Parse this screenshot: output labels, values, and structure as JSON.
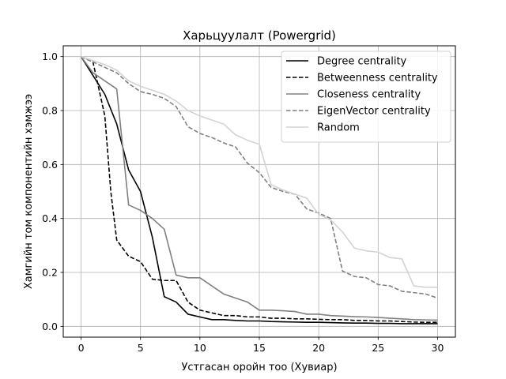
{
  "chart_data": {
    "type": "line",
    "title": "Харьцуулалт (Powergrid)",
    "xlabel": "Устгасан оройн тоо (Хувиар)",
    "ylabel": "Хамгийн том компонентийн хэмжээ",
    "xlim": [
      -1.5,
      31.5
    ],
    "ylim": [
      -0.04,
      1.04
    ],
    "xticks": [
      0,
      5,
      10,
      15,
      20,
      25,
      30
    ],
    "yticks": [
      0.0,
      0.2,
      0.4,
      0.6,
      0.8,
      1.0
    ],
    "ytick_labels": [
      "0.0",
      "0.2",
      "0.4",
      "0.6",
      "0.8",
      "1.0"
    ],
    "grid": true,
    "legend_position": "top-right",
    "series": [
      {
        "name": "Degree centrality",
        "color": "#000000",
        "dash": "solid",
        "x": [
          0,
          1,
          2,
          3,
          4,
          5,
          6,
          7,
          8,
          9,
          10,
          11,
          12,
          13,
          14,
          15,
          16,
          17,
          18,
          19,
          20,
          21,
          22,
          23,
          24,
          25,
          26,
          27,
          28,
          29,
          30
        ],
        "y": [
          1.0,
          0.93,
          0.86,
          0.75,
          0.58,
          0.5,
          0.33,
          0.11,
          0.09,
          0.045,
          0.035,
          0.025,
          0.025,
          0.022,
          0.02,
          0.02,
          0.018,
          0.017,
          0.016,
          0.015,
          0.015,
          0.014,
          0.013,
          0.012,
          0.012,
          0.011,
          0.011,
          0.01,
          0.01,
          0.01,
          0.01
        ]
      },
      {
        "name": "Betweenness centrality",
        "color": "#000000",
        "dash": "dashed",
        "x": [
          0,
          1,
          2,
          2.5,
          3,
          4,
          5,
          6,
          7,
          8,
          9,
          10,
          11,
          12,
          13,
          14,
          15,
          16,
          17,
          18,
          19,
          20,
          21,
          22,
          23,
          24,
          25,
          26,
          27,
          28,
          29,
          30
        ],
        "y": [
          1.0,
          0.98,
          0.78,
          0.5,
          0.32,
          0.26,
          0.24,
          0.175,
          0.17,
          0.17,
          0.09,
          0.06,
          0.05,
          0.04,
          0.04,
          0.035,
          0.035,
          0.03,
          0.03,
          0.028,
          0.028,
          0.026,
          0.025,
          0.025,
          0.022,
          0.022,
          0.02,
          0.02,
          0.018,
          0.016,
          0.015,
          0.015
        ]
      },
      {
        "name": "Closeness centrality",
        "color": "#808080",
        "dash": "solid",
        "x": [
          0,
          1,
          2,
          3,
          4,
          5,
          6,
          7,
          8,
          9,
          10,
          11,
          12,
          13,
          14,
          15,
          16,
          17,
          18,
          19,
          20,
          21,
          22,
          23,
          24,
          25,
          26,
          27,
          28,
          29,
          30
        ],
        "y": [
          1.0,
          0.94,
          0.91,
          0.88,
          0.45,
          0.43,
          0.4,
          0.36,
          0.19,
          0.18,
          0.18,
          0.15,
          0.12,
          0.105,
          0.09,
          0.06,
          0.06,
          0.058,
          0.055,
          0.045,
          0.045,
          0.04,
          0.038,
          0.036,
          0.035,
          0.033,
          0.03,
          0.028,
          0.025,
          0.024,
          0.023
        ]
      },
      {
        "name": "EigenVector centrality",
        "color": "#808080",
        "dash": "dashed",
        "x": [
          0,
          1,
          2,
          3,
          4,
          5,
          6,
          7,
          8,
          9,
          10,
          11,
          12,
          13,
          14,
          15,
          16,
          17,
          18,
          19,
          20,
          21,
          22,
          23,
          24,
          25,
          26,
          27,
          28,
          29,
          30
        ],
        "y": [
          1.0,
          0.98,
          0.96,
          0.94,
          0.9,
          0.87,
          0.86,
          0.845,
          0.815,
          0.74,
          0.715,
          0.7,
          0.68,
          0.665,
          0.605,
          0.57,
          0.515,
          0.5,
          0.49,
          0.435,
          0.42,
          0.4,
          0.205,
          0.185,
          0.18,
          0.155,
          0.15,
          0.13,
          0.125,
          0.12,
          0.105
        ]
      },
      {
        "name": "Random",
        "color": "#d3d3d3",
        "dash": "solid",
        "x": [
          0,
          1,
          2,
          3,
          4,
          5,
          6,
          7,
          8,
          9,
          10,
          11,
          12,
          13,
          14,
          15,
          16,
          17,
          18,
          19,
          20,
          21,
          22,
          23,
          24,
          25,
          26,
          27,
          28,
          29,
          30
        ],
        "y": [
          1.0,
          0.985,
          0.97,
          0.95,
          0.91,
          0.89,
          0.875,
          0.86,
          0.835,
          0.8,
          0.78,
          0.765,
          0.75,
          0.71,
          0.69,
          0.675,
          0.525,
          0.505,
          0.49,
          0.475,
          0.415,
          0.395,
          0.35,
          0.29,
          0.28,
          0.275,
          0.255,
          0.25,
          0.15,
          0.145,
          0.145
        ]
      }
    ]
  }
}
